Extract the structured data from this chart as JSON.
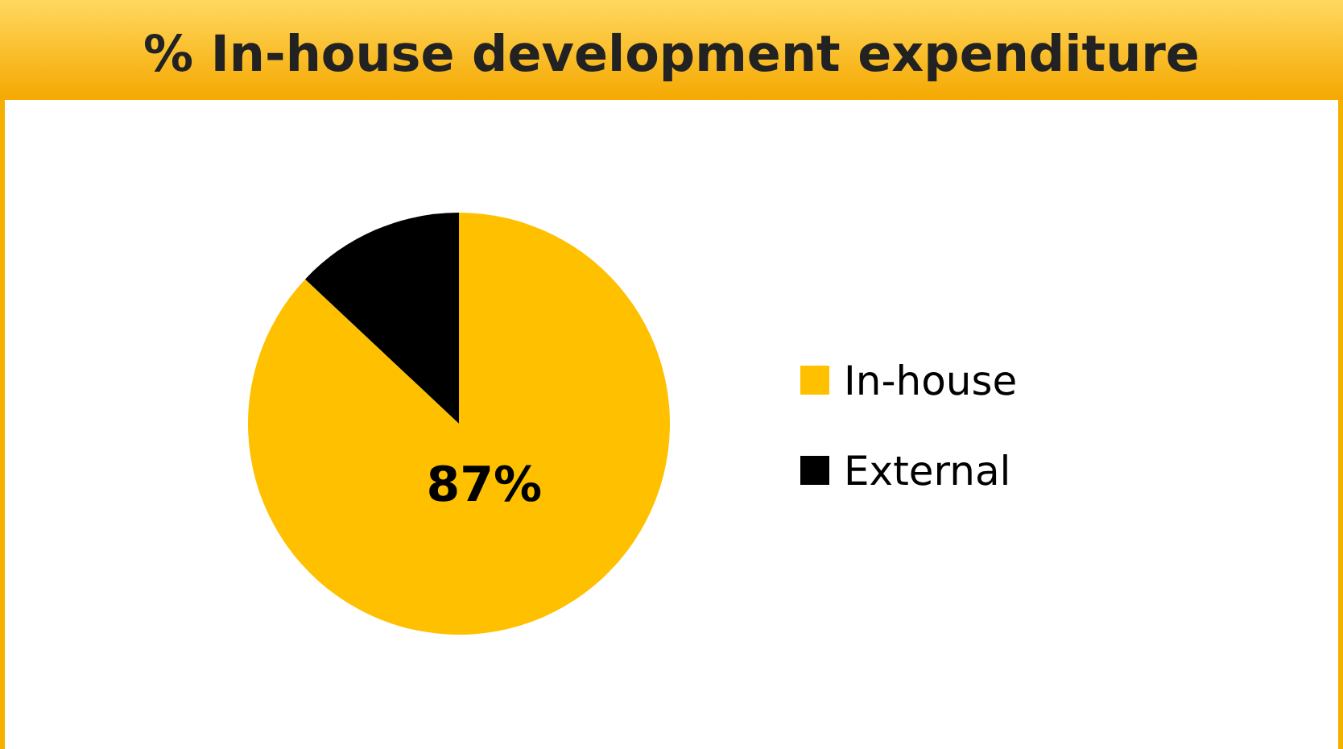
{
  "chart_data": {
    "type": "pie",
    "title": "% In-house development expenditure",
    "categories": [
      "In-house",
      "External"
    ],
    "values": [
      87,
      13
    ],
    "colors": [
      "#ffc000",
      "#000000"
    ],
    "value_labels": [
      "87%",
      null
    ],
    "legend": "right"
  }
}
